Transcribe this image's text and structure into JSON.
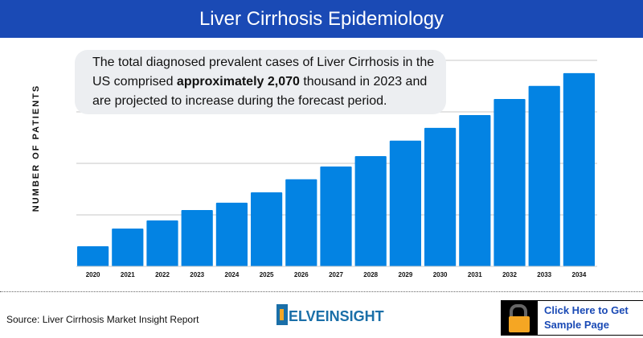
{
  "header": {
    "title": "Liver Cirrhosis Epidemiology"
  },
  "callout": {
    "pre": "The total diagnosed prevalent cases of Liver Cirrhosis in the US comprised ",
    "bold": "approximately 2,070",
    "post": " thousand in 2023 and are projected to increase during the forecast period."
  },
  "footer": {
    "source": "Source: Liver Cirrhosis Market Insight Report",
    "logo_text": "ELVEINSIGHT",
    "logo_full": "DelveInsight",
    "cta_line1": "Click Here to Get",
    "cta_line2": "Sample Page"
  },
  "colors": {
    "header": "#1a4ab5",
    "bar": "#0383e3",
    "grid": "#e3e3e3",
    "cta_text": "#1a4ab5",
    "lock": "#f5a623"
  },
  "icons": {
    "cta": "unlocked-padlock-icon"
  },
  "chart_data": {
    "type": "bar",
    "title": "",
    "xlabel": "",
    "ylabel": "NUMBER OF PATIENTS",
    "categories": [
      "2020",
      "2021",
      "2022",
      "2023",
      "2024",
      "2025",
      "2026",
      "2027",
      "2028",
      "2029",
      "2030",
      "2031",
      "2032",
      "2033",
      "2034"
    ],
    "values": [
      740,
      1390,
      1690,
      2070,
      2340,
      2720,
      3200,
      3670,
      4050,
      4620,
      5090,
      5560,
      6150,
      6630,
      7100
    ],
    "ylim": [
      0,
      7570
    ],
    "grid": true,
    "y_ticks_shown": false
  }
}
